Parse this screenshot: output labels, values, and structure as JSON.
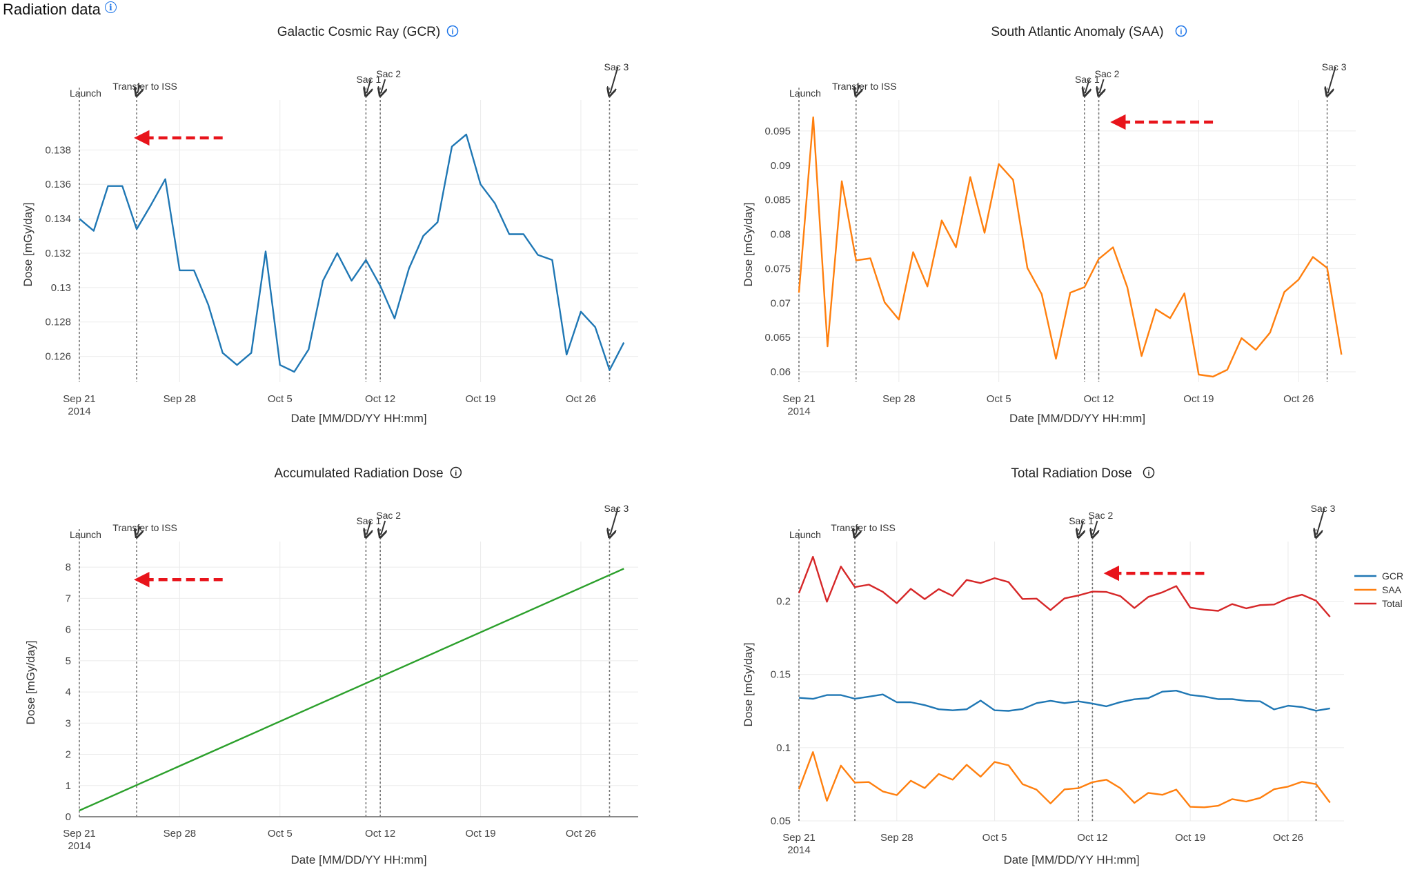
{
  "page": {
    "title": "Radiation data",
    "info_icon": "info-icon"
  },
  "chart_data": [
    {
      "id": "gcr",
      "type": "line",
      "title": "Galactic Cosmic Ray (GCR)",
      "title_icon": "info-icon",
      "title_icon_color": "#1a73e8",
      "xlabel": "Date [MM/DD/YY HH:mm]",
      "ylabel": "Dose [mGy/day]",
      "x_start": "2014-09-21",
      "x_ticks": [
        {
          "date": "2014-09-21",
          "label": "Sep 21",
          "sublabel": "2014"
        },
        {
          "date": "2014-09-28",
          "label": "Sep 28"
        },
        {
          "date": "2014-10-05",
          "label": "Oct 5"
        },
        {
          "date": "2014-10-12",
          "label": "Oct 12"
        },
        {
          "date": "2014-10-19",
          "label": "Oct 19"
        },
        {
          "date": "2014-10-26",
          "label": "Oct 26"
        }
      ],
      "xlim": [
        "2014-09-21",
        "2014-10-30"
      ],
      "ylim": [
        0.1245,
        0.1405
      ],
      "y_ticks": [
        0.126,
        0.128,
        0.13,
        0.132,
        0.134,
        0.136,
        0.138
      ],
      "y_tick_labels": [
        "0.126",
        "0.128",
        "0.13",
        "0.132",
        "0.134",
        "0.136",
        "0.138"
      ],
      "grid": true,
      "events": [
        {
          "date": "2014-09-21",
          "label": "Launch",
          "arrow": false
        },
        {
          "date": "2014-09-25",
          "label": "Transfer to ISS",
          "arrow": true
        },
        {
          "date": "2014-10-11",
          "label": "Sac 1",
          "arrow": true
        },
        {
          "date": "2014-10-12",
          "label": "Sac 2",
          "arrow": true
        },
        {
          "date": "2014-10-28",
          "label": "Sac 3",
          "arrow": true
        }
      ],
      "red_arrow": {
        "from_date": "2014-10-01",
        "to_date": "2014-09-25",
        "y": 0.1387
      },
      "series": [
        {
          "color": "#1f77b4",
          "x": [
            "2014-09-21",
            "2014-09-22",
            "2014-09-23",
            "2014-09-24",
            "2014-09-25",
            "2014-09-26",
            "2014-09-27",
            "2014-09-28",
            "2014-09-29",
            "2014-09-30",
            "2014-10-01",
            "2014-10-02",
            "2014-10-03",
            "2014-10-04",
            "2014-10-05",
            "2014-10-06",
            "2014-10-07",
            "2014-10-08",
            "2014-10-09",
            "2014-10-10",
            "2014-10-11",
            "2014-10-12",
            "2014-10-13",
            "2014-10-14",
            "2014-10-15",
            "2014-10-16",
            "2014-10-17",
            "2014-10-18",
            "2014-10-19",
            "2014-10-20",
            "2014-10-21",
            "2014-10-22",
            "2014-10-23",
            "2014-10-24",
            "2014-10-25",
            "2014-10-26",
            "2014-10-27",
            "2014-10-28",
            "2014-10-29"
          ],
          "y": [
            0.134,
            0.1333,
            0.1359,
            0.1359,
            0.1334,
            0.1348,
            0.1363,
            0.131,
            0.131,
            0.129,
            0.1262,
            0.1255,
            0.1262,
            0.1321,
            0.1255,
            0.1251,
            0.1264,
            0.1304,
            0.132,
            0.1304,
            0.1316,
            0.1301,
            0.1282,
            0.1311,
            0.133,
            0.1338,
            0.1382,
            0.1389,
            0.136,
            0.1349,
            0.1331,
            0.1331,
            0.1319,
            0.1316,
            0.1261,
            0.1286,
            0.1277,
            0.1252,
            0.1268
          ]
        }
      ]
    },
    {
      "id": "saa",
      "type": "line",
      "title": "South Atlantic Anomaly (SAA)",
      "title_icon": "info-icon",
      "title_icon_color": "#1a73e8",
      "xlabel": "Date [MM/DD/YY HH:mm]",
      "ylabel": "Dose [mGy/day]",
      "x_start": "2014-09-21",
      "x_ticks": [
        {
          "date": "2014-09-21",
          "label": "Sep 21",
          "sublabel": "2014"
        },
        {
          "date": "2014-09-28",
          "label": "Sep 28"
        },
        {
          "date": "2014-10-05",
          "label": "Oct 5"
        },
        {
          "date": "2014-10-12",
          "label": "Oct 12"
        },
        {
          "date": "2014-10-19",
          "label": "Oct 19"
        },
        {
          "date": "2014-10-26",
          "label": "Oct 26"
        }
      ],
      "xlim": [
        "2014-09-21",
        "2014-10-30"
      ],
      "ylim": [
        0.0585,
        0.0985
      ],
      "y_ticks": [
        0.06,
        0.065,
        0.07,
        0.075,
        0.08,
        0.085,
        0.09,
        0.095
      ],
      "y_tick_labels": [
        "0.06",
        "0.065",
        "0.07",
        "0.075",
        "0.08",
        "0.085",
        "0.09",
        "0.095"
      ],
      "grid": true,
      "events": [
        {
          "date": "2014-09-21",
          "label": "Launch",
          "arrow": false
        },
        {
          "date": "2014-09-25",
          "label": "Transfer to ISS",
          "arrow": true
        },
        {
          "date": "2014-10-11",
          "label": "Sac 1",
          "arrow": true
        },
        {
          "date": "2014-10-12",
          "label": "Sac 2",
          "arrow": true
        },
        {
          "date": "2014-10-28",
          "label": "Sac 3",
          "arrow": true
        }
      ],
      "red_arrow": {
        "from_date": "2014-10-20",
        "to_date": "2014-10-13",
        "y": 0.0963
      },
      "series": [
        {
          "color": "#ff7f0e",
          "x": [
            "2014-09-21",
            "2014-09-22",
            "2014-09-23",
            "2014-09-24",
            "2014-09-25",
            "2014-09-26",
            "2014-09-27",
            "2014-09-28",
            "2014-09-29",
            "2014-09-30",
            "2014-10-01",
            "2014-10-02",
            "2014-10-03",
            "2014-10-04",
            "2014-10-05",
            "2014-10-06",
            "2014-10-07",
            "2014-10-08",
            "2014-10-09",
            "2014-10-10",
            "2014-10-11",
            "2014-10-12",
            "2014-10-13",
            "2014-10-14",
            "2014-10-15",
            "2014-10-16",
            "2014-10-17",
            "2014-10-18",
            "2014-10-19",
            "2014-10-20",
            "2014-10-21",
            "2014-10-22",
            "2014-10-23",
            "2014-10-24",
            "2014-10-25",
            "2014-10-26",
            "2014-10-27",
            "2014-10-28",
            "2014-10-29"
          ],
          "y": [
            0.0715,
            0.097,
            0.0637,
            0.0877,
            0.0762,
            0.0765,
            0.0701,
            0.0676,
            0.0774,
            0.0724,
            0.082,
            0.0781,
            0.0883,
            0.0802,
            0.0902,
            0.0879,
            0.0751,
            0.0713,
            0.0619,
            0.0715,
            0.0723,
            0.0764,
            0.0781,
            0.0723,
            0.0623,
            0.0691,
            0.0678,
            0.0714,
            0.0596,
            0.0593,
            0.0603,
            0.0649,
            0.0632,
            0.0657,
            0.0716,
            0.0734,
            0.0767,
            0.0751,
            0.0625
          ]
        }
      ]
    },
    {
      "id": "accumulated",
      "type": "line",
      "title": "Accumulated Radiation Dose",
      "title_icon": "info-icon",
      "title_icon_color": "#222222",
      "xlabel": "Date [MM/DD/YY HH:mm]",
      "ylabel": "Dose [mGy/day]",
      "x_start": "2014-09-21",
      "x_ticks": [
        {
          "date": "2014-09-21",
          "label": "Sep 21",
          "sublabel": "2014"
        },
        {
          "date": "2014-09-28",
          "label": "Sep 28"
        },
        {
          "date": "2014-10-05",
          "label": "Oct 5"
        },
        {
          "date": "2014-10-12",
          "label": "Oct 12"
        },
        {
          "date": "2014-10-19",
          "label": "Oct 19"
        },
        {
          "date": "2014-10-26",
          "label": "Oct 26"
        }
      ],
      "xlim": [
        "2014-09-21",
        "2014-10-30"
      ],
      "ylim": [
        0,
        8.6
      ],
      "y_ticks": [
        0,
        1,
        2,
        3,
        4,
        5,
        6,
        7,
        8
      ],
      "y_tick_labels": [
        "0",
        "1",
        "2",
        "3",
        "4",
        "5",
        "6",
        "7",
        "8"
      ],
      "grid": true,
      "events": [
        {
          "date": "2014-09-21",
          "label": "Launch",
          "arrow": false
        },
        {
          "date": "2014-09-25",
          "label": "Transfer to ISS",
          "arrow": true
        },
        {
          "date": "2014-10-11",
          "label": "Sac 1",
          "arrow": true
        },
        {
          "date": "2014-10-12",
          "label": "Sac 2",
          "arrow": true
        },
        {
          "date": "2014-10-28",
          "label": "Sac 3",
          "arrow": true
        }
      ],
      "red_arrow": {
        "from_date": "2014-10-01",
        "to_date": "2014-09-25",
        "y": 7.6
      },
      "series": [
        {
          "color": "#2ca02c",
          "x": [
            "2014-09-21",
            "2014-10-29"
          ],
          "y": [
            0.2,
            7.95
          ]
        }
      ]
    },
    {
      "id": "total",
      "type": "line",
      "title": "Total Radiation Dose",
      "title_icon": "info-icon",
      "title_icon_color": "#222222",
      "xlabel": "Date [MM/DD/YY HH:mm]",
      "ylabel": "Dose [mGy/day]",
      "x_start": "2014-09-21",
      "x_ticks": [
        {
          "date": "2014-09-21",
          "label": "Sep 21",
          "sublabel": "2014"
        },
        {
          "date": "2014-09-28",
          "label": "Sep 28"
        },
        {
          "date": "2014-10-05",
          "label": "Oct 5"
        },
        {
          "date": "2014-10-12",
          "label": "Oct 12"
        },
        {
          "date": "2014-10-19",
          "label": "Oct 19"
        },
        {
          "date": "2014-10-26",
          "label": "Oct 26"
        }
      ],
      "xlim": [
        "2014-09-21",
        "2014-10-30"
      ],
      "ylim": [
        0.05,
        0.236
      ],
      "y_ticks": [
        0.05,
        0.1,
        0.15,
        0.2
      ],
      "y_tick_labels": [
        "0.05",
        "0.1",
        "0.15",
        "0.2"
      ],
      "grid": true,
      "legend": "right",
      "events": [
        {
          "date": "2014-09-21",
          "label": "Launch",
          "arrow": false
        },
        {
          "date": "2014-09-25",
          "label": "Transfer to ISS",
          "arrow": true
        },
        {
          "date": "2014-10-11",
          "label": "Sac 1",
          "arrow": true
        },
        {
          "date": "2014-10-12",
          "label": "Sac 2",
          "arrow": true
        },
        {
          "date": "2014-10-28",
          "label": "Sac 3",
          "arrow": true
        }
      ],
      "red_arrow": {
        "from_date": "2014-10-20",
        "to_date": "2014-10-13",
        "y": 0.219
      },
      "series": [
        {
          "name": "GCR",
          "color": "#1f77b4",
          "x": [
            "2014-09-21",
            "2014-09-22",
            "2014-09-23",
            "2014-09-24",
            "2014-09-25",
            "2014-09-26",
            "2014-09-27",
            "2014-09-28",
            "2014-09-29",
            "2014-09-30",
            "2014-10-01",
            "2014-10-02",
            "2014-10-03",
            "2014-10-04",
            "2014-10-05",
            "2014-10-06",
            "2014-10-07",
            "2014-10-08",
            "2014-10-09",
            "2014-10-10",
            "2014-10-11",
            "2014-10-12",
            "2014-10-13",
            "2014-10-14",
            "2014-10-15",
            "2014-10-16",
            "2014-10-17",
            "2014-10-18",
            "2014-10-19",
            "2014-10-20",
            "2014-10-21",
            "2014-10-22",
            "2014-10-23",
            "2014-10-24",
            "2014-10-25",
            "2014-10-26",
            "2014-10-27",
            "2014-10-28",
            "2014-10-29"
          ],
          "y": [
            0.134,
            0.1333,
            0.1359,
            0.1359,
            0.1334,
            0.1348,
            0.1363,
            0.131,
            0.131,
            0.129,
            0.1262,
            0.1255,
            0.1262,
            0.1321,
            0.1255,
            0.1251,
            0.1264,
            0.1304,
            0.132,
            0.1304,
            0.1316,
            0.1301,
            0.1282,
            0.1311,
            0.133,
            0.1338,
            0.1382,
            0.1389,
            0.136,
            0.1349,
            0.1331,
            0.1331,
            0.1319,
            0.1316,
            0.1261,
            0.1286,
            0.1277,
            0.1252,
            0.1268
          ]
        },
        {
          "name": "SAA",
          "color": "#ff7f0e",
          "x": [
            "2014-09-21",
            "2014-09-22",
            "2014-09-23",
            "2014-09-24",
            "2014-09-25",
            "2014-09-26",
            "2014-09-27",
            "2014-09-28",
            "2014-09-29",
            "2014-09-30",
            "2014-10-01",
            "2014-10-02",
            "2014-10-03",
            "2014-10-04",
            "2014-10-05",
            "2014-10-06",
            "2014-10-07",
            "2014-10-08",
            "2014-10-09",
            "2014-10-10",
            "2014-10-11",
            "2014-10-12",
            "2014-10-13",
            "2014-10-14",
            "2014-10-15",
            "2014-10-16",
            "2014-10-17",
            "2014-10-18",
            "2014-10-19",
            "2014-10-20",
            "2014-10-21",
            "2014-10-22",
            "2014-10-23",
            "2014-10-24",
            "2014-10-25",
            "2014-10-26",
            "2014-10-27",
            "2014-10-28",
            "2014-10-29"
          ],
          "y": [
            0.0715,
            0.097,
            0.0637,
            0.0877,
            0.0762,
            0.0765,
            0.0701,
            0.0676,
            0.0774,
            0.0724,
            0.082,
            0.0781,
            0.0883,
            0.0802,
            0.0902,
            0.0879,
            0.0751,
            0.0713,
            0.0619,
            0.0715,
            0.0723,
            0.0764,
            0.0781,
            0.0723,
            0.0623,
            0.0691,
            0.0678,
            0.0714,
            0.0596,
            0.0593,
            0.0603,
            0.0649,
            0.0632,
            0.0657,
            0.0716,
            0.0734,
            0.0767,
            0.0751,
            0.0625
          ]
        },
        {
          "name": "Total",
          "color": "#d62728",
          "x": [
            "2014-09-21",
            "2014-09-22",
            "2014-09-23",
            "2014-09-24",
            "2014-09-25",
            "2014-09-26",
            "2014-09-27",
            "2014-09-28",
            "2014-09-29",
            "2014-09-30",
            "2014-10-01",
            "2014-10-02",
            "2014-10-03",
            "2014-10-04",
            "2014-10-05",
            "2014-10-06",
            "2014-10-07",
            "2014-10-08",
            "2014-10-09",
            "2014-10-10",
            "2014-10-11",
            "2014-10-12",
            "2014-10-13",
            "2014-10-14",
            "2014-10-15",
            "2014-10-16",
            "2014-10-17",
            "2014-10-18",
            "2014-10-19",
            "2014-10-20",
            "2014-10-21",
            "2014-10-22",
            "2014-10-23",
            "2014-10-24",
            "2014-10-25",
            "2014-10-26",
            "2014-10-27",
            "2014-10-28",
            "2014-10-29"
          ],
          "y": [
            0.2055,
            0.2303,
            0.1996,
            0.2236,
            0.2096,
            0.2113,
            0.2064,
            0.1986,
            0.2084,
            0.2014,
            0.2082,
            0.2036,
            0.2145,
            0.2123,
            0.2157,
            0.213,
            0.2015,
            0.2017,
            0.1939,
            0.2019,
            0.2039,
            0.2065,
            0.2063,
            0.2034,
            0.1953,
            0.2029,
            0.206,
            0.2103,
            0.1956,
            0.1942,
            0.1934,
            0.198,
            0.1951,
            0.1973,
            0.1977,
            0.202,
            0.2044,
            0.2003,
            0.1893
          ]
        }
      ]
    }
  ]
}
